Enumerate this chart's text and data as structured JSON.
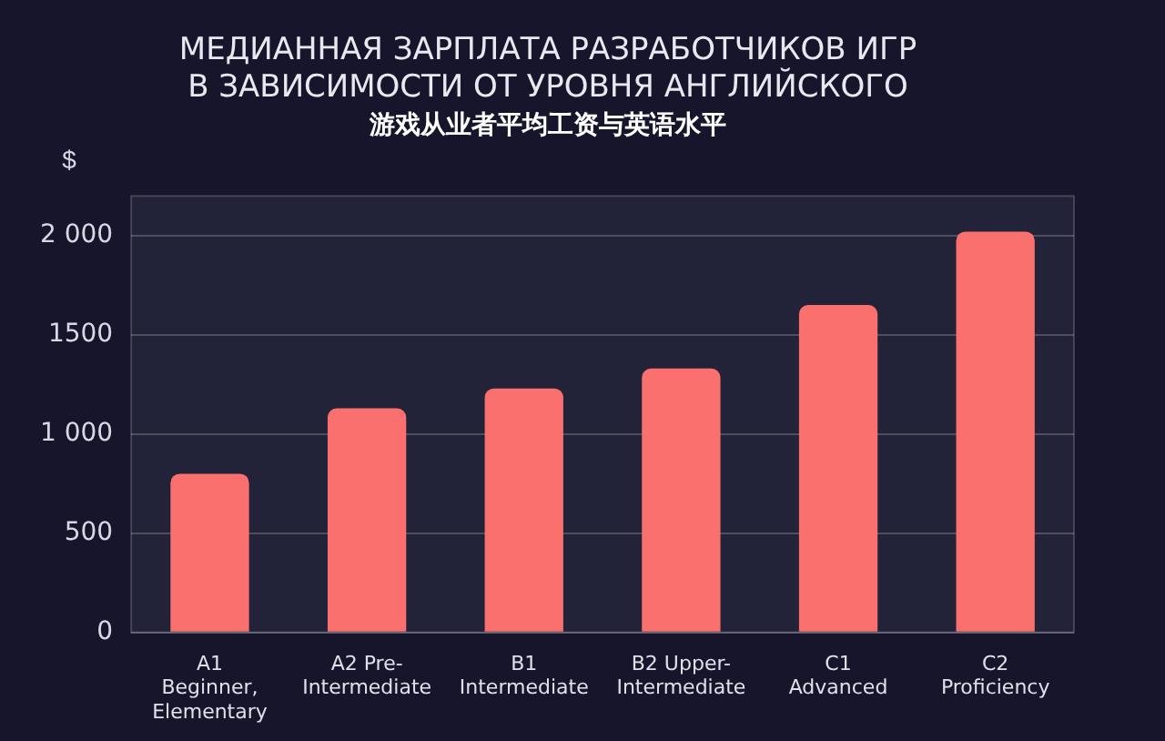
{
  "chart_data": {
    "type": "bar",
    "title": [
      "МЕДИАННАЯ ЗАРПЛАТА РАЗРАБОТЧИКОВ ИГР",
      "В ЗАВИСИМОСТИ ОТ УРОВНЯ АНГЛИЙСКОГО"
    ],
    "subtitle": "游戏从业者平均工资与英语水平",
    "ylabel": "$",
    "categories": [
      "A1 Beginner, Elementary",
      "A2 Pre-Intermediate",
      "B1 Intermediate",
      "B2 Upper-Intermediate",
      "C1 Advanced",
      "C2 Proficiency"
    ],
    "values": [
      800,
      1130,
      1230,
      1330,
      1650,
      2020
    ],
    "color": "#f9706f",
    "ylim": [
      0,
      2200
    ],
    "yticks": [
      0,
      500,
      {
        "value": 1000,
        "label": "1 000"
      },
      1500,
      {
        "value": 2000,
        "label": "2 000"
      }
    ],
    "grid": "y"
  }
}
